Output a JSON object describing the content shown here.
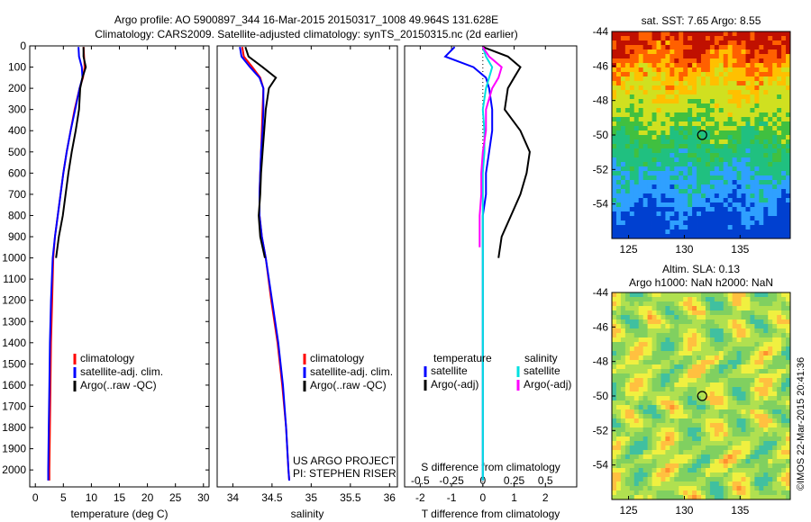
{
  "header": {
    "title_line1": "Argo profile: AO 5900897_344 16-Mar-2015 20150317_1008 49.964S 131.628E",
    "title_line2": "Climatology: CARS2009. Satellite-adjusted climatology: synTS_20150315.nc (2d earlier)"
  },
  "colors": {
    "climatology": "#ff0000",
    "satellite": "#0000ff",
    "argo": "#000000",
    "sat_salinity": "#00e0e0",
    "argo_salinity_adj": "#ff00ff"
  },
  "chart_data": [
    {
      "type": "line",
      "id": "temperature",
      "xlabel": "temperature (deg C)",
      "ylabel": "",
      "xlim": [
        -1,
        31
      ],
      "ylim": [
        2080,
        0
      ],
      "xticks": [
        0,
        5,
        10,
        15,
        20,
        25,
        30
      ],
      "yticks": [
        0,
        100,
        200,
        300,
        400,
        500,
        600,
        700,
        800,
        900,
        1000,
        1100,
        1200,
        1300,
        1400,
        1500,
        1600,
        1700,
        1800,
        1900,
        2000
      ],
      "legend": [
        "climatology",
        "satellite-adj. clim.",
        "Argo(..raw -QC)"
      ],
      "series": [
        {
          "name": "climatology",
          "color_key": "climatology",
          "x": [
            8.6,
            8.7,
            8.8,
            8.5,
            7.9,
            7.0,
            6.3,
            5.6,
            5.0,
            4.5,
            4.0,
            3.5,
            3.2,
            3.0,
            2.8,
            2.7,
            2.6,
            2.5,
            2.5
          ],
          "y": [
            5,
            50,
            100,
            150,
            200,
            300,
            400,
            500,
            600,
            700,
            800,
            900,
            1000,
            1200,
            1400,
            1600,
            1800,
            2000,
            2050
          ]
        },
        {
          "name": "satellite-adj. clim.",
          "color_key": "satellite",
          "x": [
            7.7,
            7.8,
            8.3,
            8.4,
            7.9,
            7.1,
            6.3,
            5.6,
            5.0,
            4.5,
            4.0,
            3.5,
            3.1,
            2.8,
            2.6,
            2.5,
            2.4,
            2.3,
            2.3
          ],
          "y": [
            5,
            50,
            100,
            150,
            200,
            300,
            400,
            500,
            600,
            700,
            800,
            900,
            1000,
            1200,
            1400,
            1600,
            1800,
            2000,
            2050
          ]
        },
        {
          "name": "Argo(..raw -QC)",
          "color_key": "argo",
          "x": [
            8.6,
            8.6,
            9.0,
            8.4,
            8.0,
            7.8,
            7.2,
            6.5,
            5.9,
            5.4,
            4.9,
            4.2,
            3.7
          ],
          "y": [
            5,
            50,
            100,
            150,
            200,
            300,
            400,
            500,
            600,
            700,
            800,
            900,
            1000
          ]
        }
      ],
      "annotations": []
    },
    {
      "type": "line",
      "id": "salinity",
      "xlabel": "salinity",
      "xlim": [
        33.8,
        36.1
      ],
      "ylim": [
        2080,
        0
      ],
      "xticks": [
        34,
        34.5,
        35,
        35.5,
        36
      ],
      "legend": [
        "climatology",
        "satellite-adj. clim.",
        "Argo(..raw -QC)"
      ],
      "series": [
        {
          "name": "climatology",
          "color_key": "climatology",
          "x": [
            34.12,
            34.14,
            34.25,
            34.35,
            34.39,
            34.38,
            34.37,
            34.36,
            34.35,
            34.34,
            34.34,
            34.37,
            34.42,
            34.49,
            34.57,
            34.63,
            34.68,
            34.71,
            34.72
          ],
          "y": [
            5,
            50,
            100,
            150,
            200,
            300,
            400,
            500,
            600,
            700,
            800,
            900,
            1000,
            1200,
            1400,
            1600,
            1800,
            2000,
            2050
          ]
        },
        {
          "name": "satellite-adj. clim.",
          "color_key": "satellite",
          "x": [
            34.09,
            34.11,
            34.22,
            34.34,
            34.39,
            34.39,
            34.38,
            34.36,
            34.35,
            34.34,
            34.34,
            34.37,
            34.42,
            34.5,
            34.58,
            34.64,
            34.68,
            34.71,
            34.72
          ],
          "y": [
            5,
            50,
            100,
            150,
            200,
            300,
            400,
            500,
            600,
            700,
            800,
            900,
            1000,
            1200,
            1400,
            1600,
            1800,
            2000,
            2050
          ]
        },
        {
          "name": "Argo(..raw -QC)",
          "color_key": "argo",
          "x": [
            34.16,
            34.2,
            34.38,
            34.55,
            34.46,
            34.42,
            34.4,
            34.38,
            34.36,
            34.35,
            34.33,
            34.35,
            34.41
          ],
          "y": [
            5,
            50,
            100,
            150,
            200,
            300,
            400,
            500,
            600,
            700,
            800,
            900,
            1000
          ]
        }
      ],
      "annotations": [
        "US ARGO PROJECT",
        "PI: STEPHEN RISER"
      ]
    },
    {
      "type": "line",
      "id": "differences",
      "xlabel": "T difference from climatology",
      "xlabel_top": "S difference from climatology",
      "xlim": [
        -2.5,
        3
      ],
      "ylim": [
        2080,
        0
      ],
      "xticks": [
        -2,
        -1,
        0,
        1,
        2
      ],
      "xticks_s": [
        -0.5,
        -0.25,
        0,
        0.25,
        0.5
      ],
      "legend_temperature_title": "temperature",
      "legend_salinity_title": "salinity",
      "legend": [
        "satellite",
        "Argo(-adj)",
        "satellite",
        "Argo(-adj)"
      ],
      "series": [
        {
          "name": "satellite",
          "color_key": "satellite",
          "x": [
            -0.9,
            -1.2,
            -0.3,
            0.1,
            0.2,
            0.3,
            0.3,
            0.2,
            0.1,
            0.1,
            0.0,
            0.0,
            0.0,
            0.0,
            0.0,
            0.0,
            0.0
          ],
          "y": [
            5,
            50,
            100,
            150,
            200,
            300,
            400,
            500,
            600,
            700,
            800,
            900,
            1000,
            1200,
            1400,
            1600,
            2050
          ]
        },
        {
          "name": "Argo(-adj)",
          "color_key": "argo",
          "x": [
            0.0,
            0.8,
            1.2,
            1.0,
            0.8,
            0.7,
            1.2,
            1.5,
            1.4,
            1.2,
            0.9,
            0.6,
            0.5
          ],
          "y": [
            5,
            50,
            100,
            150,
            200,
            300,
            400,
            500,
            600,
            700,
            800,
            900,
            1000
          ]
        },
        {
          "name": "satellite",
          "color_key": "sat_salinity",
          "x": [
            0.0,
            0.1,
            0.3,
            0.2,
            0.1,
            0.0,
            0.05,
            0.05,
            0.0,
            0.0,
            0.0,
            0.0,
            0.0,
            0.0,
            0.0,
            0.0
          ],
          "y": [
            5,
            50,
            100,
            150,
            200,
            300,
            400,
            500,
            600,
            700,
            800,
            900,
            1000,
            1400,
            1800,
            2050
          ]
        },
        {
          "name": "Argo(-adj)",
          "color_key": "argo_salinity_adj",
          "x": [
            0.0,
            0.2,
            0.6,
            0.5,
            0.3,
            0.1,
            0.1,
            0.0,
            -0.05,
            -0.05,
            -0.1,
            -0.1
          ],
          "y": [
            5,
            50,
            100,
            150,
            200,
            300,
            400,
            500,
            600,
            700,
            800,
            950
          ]
        }
      ],
      "annotations": []
    },
    {
      "type": "heatmap",
      "id": "sst_map",
      "title": "sat. SST: 7.65 Argo: 8.55",
      "xlim": [
        123.5,
        139.5
      ],
      "ylim": [
        -56,
        -44
      ],
      "xticks": [
        125,
        130,
        135
      ],
      "yticks": [
        -44,
        -46,
        -48,
        -50,
        -52,
        -54
      ],
      "marker": {
        "lon": 131.6,
        "lat": -50.0
      }
    },
    {
      "type": "heatmap",
      "id": "sla_map",
      "title": "Altim. SLA: 0.13",
      "subtitle": "Argo h1000: NaN h2000: NaN",
      "xlim": [
        123.5,
        139.5
      ],
      "ylim": [
        -56,
        -44
      ],
      "xticks": [
        125,
        130,
        135
      ],
      "yticks": [
        -44,
        -46,
        -48,
        -50,
        -52,
        -54
      ],
      "marker": {
        "lon": 131.6,
        "lat": -50.0
      }
    }
  ],
  "footer": {
    "credit": "©IMOS 22-Mar-2015 20:41:36"
  }
}
